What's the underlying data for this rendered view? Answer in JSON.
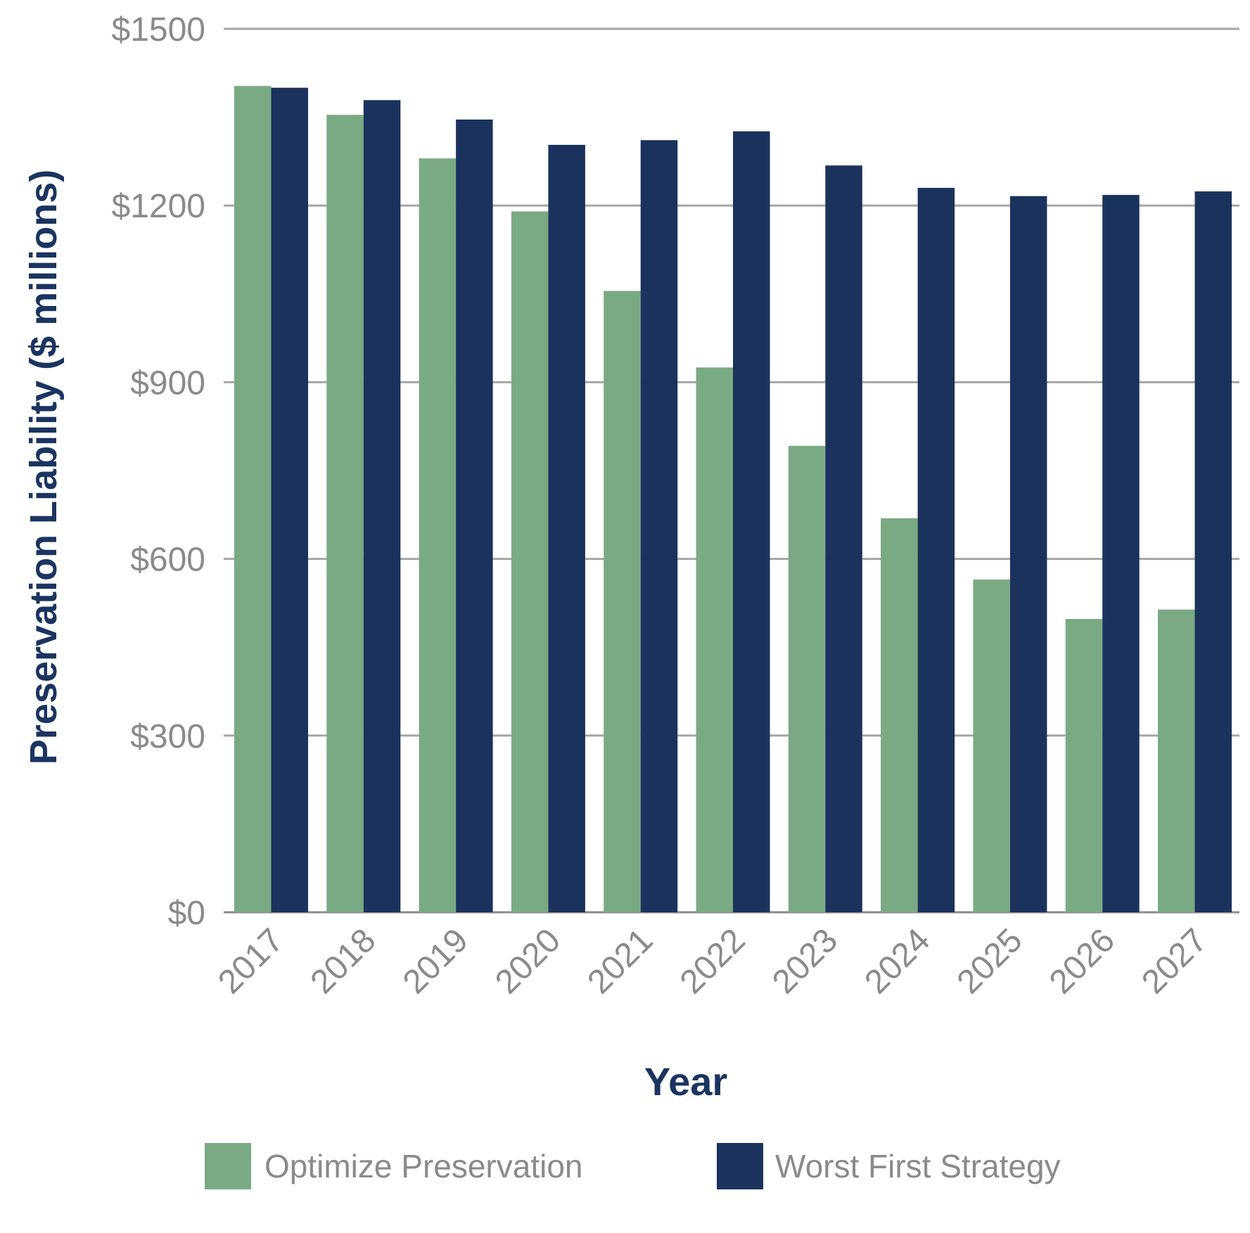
{
  "chart_data": {
    "type": "bar",
    "title": "",
    "xlabel": "Year",
    "ylabel": "Preservation Liability ($ millions)",
    "categories": [
      "2017",
      "2018",
      "2019",
      "2020",
      "2021",
      "2022",
      "2023",
      "2024",
      "2025",
      "2026",
      "2027"
    ],
    "series": [
      {
        "name": "Optimize Preservation",
        "color": "#7aaa84",
        "values": [
          1403,
          1354,
          1280,
          1190,
          1055,
          925,
          792,
          669,
          565,
          498,
          514
        ]
      },
      {
        "name": "Worst First Strategy",
        "color": "#1b335c",
        "values": [
          1400,
          1379,
          1346,
          1303,
          1311,
          1326,
          1268,
          1230,
          1216,
          1218,
          1224
        ]
      }
    ],
    "ylim": [
      0,
      1500
    ],
    "yticks": [
      0,
      300,
      600,
      900,
      1200,
      1500
    ],
    "ytick_labels": [
      "$0",
      "$300",
      "$600",
      "$900",
      "$1200",
      "$1500"
    ],
    "grid": true,
    "legend_position": "bottom"
  }
}
